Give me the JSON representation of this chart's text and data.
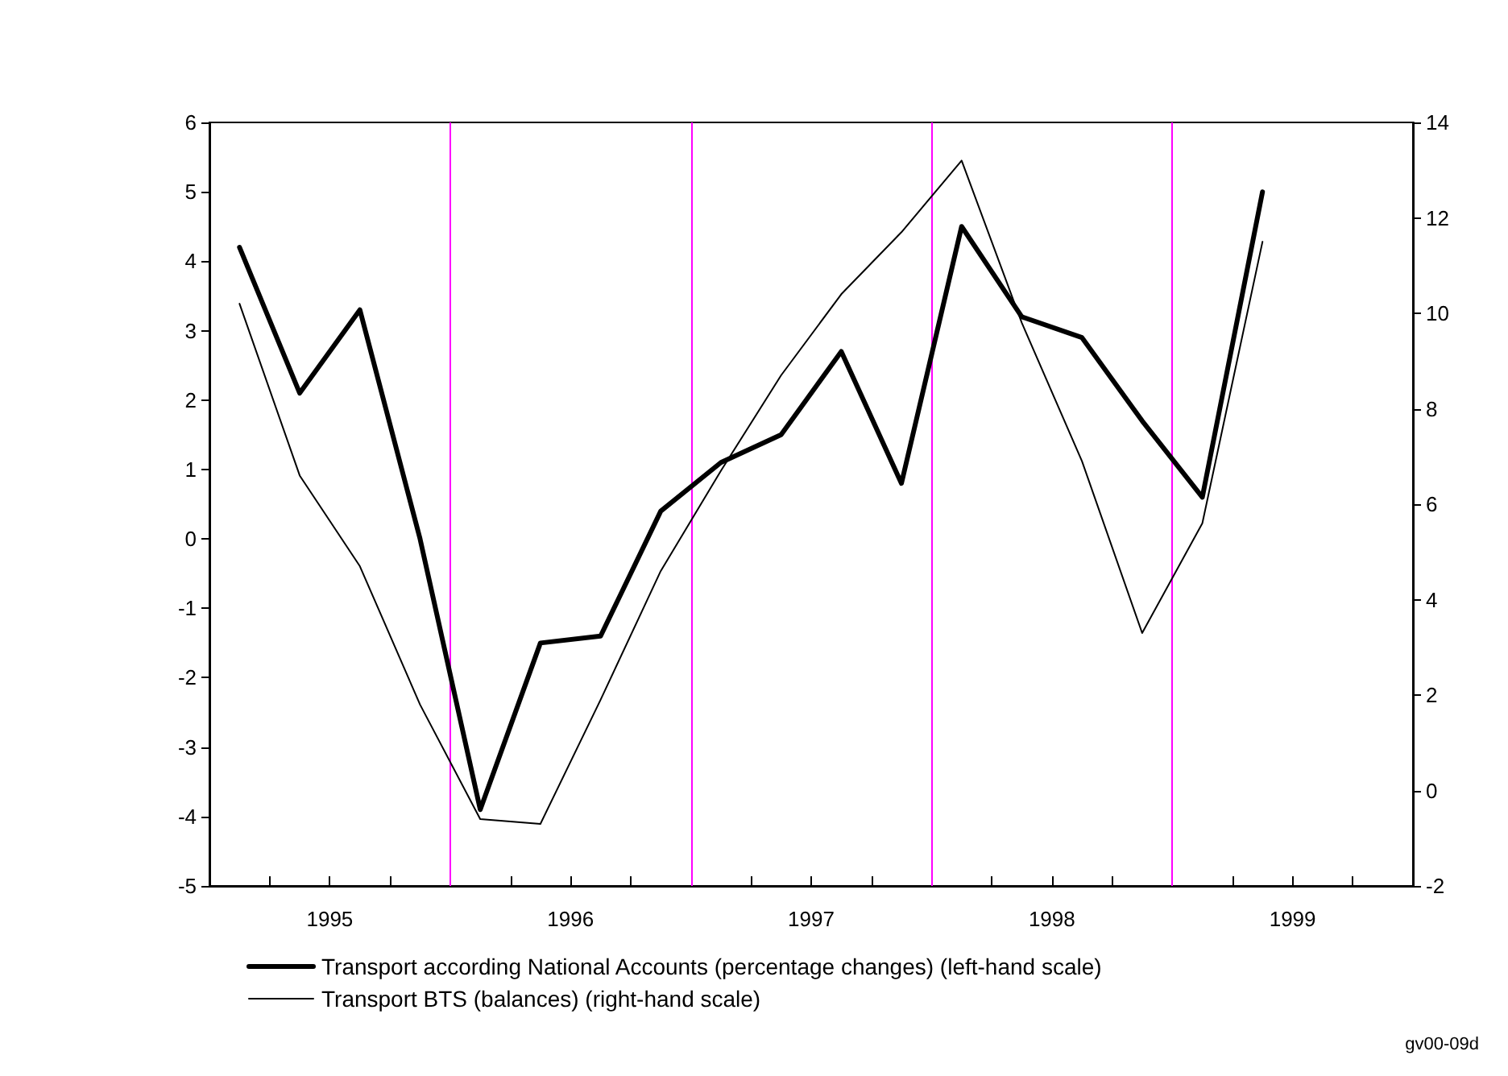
{
  "chart_data": {
    "type": "line",
    "x": [
      1995.125,
      1995.375,
      1995.625,
      1995.875,
      1996.125,
      1996.375,
      1996.625,
      1996.875,
      1997.125,
      1997.375,
      1997.625,
      1997.875,
      1998.125,
      1998.375,
      1998.625,
      1998.875,
      1999.125,
      1999.375
    ],
    "series": [
      {
        "name": "Transport according National Accounts (percentage changes) (left-hand scale)",
        "color": "#000000",
        "values": [
          4.2,
          2.1,
          3.3,
          0.0,
          -3.9,
          -1.5,
          -1.4,
          0.4,
          1.1,
          1.5,
          2.7,
          0.8,
          4.5,
          3.2,
          2.9,
          1.7,
          0.6,
          5.0
        ]
      },
      {
        "name": "Transport BTS (balances) (right-hand scale)",
        "color": "#000000",
        "axis": "y2",
        "values": [
          10.2,
          6.6,
          4.7,
          1.8,
          -0.6,
          -0.7,
          1.9,
          4.6,
          6.7,
          8.7,
          10.4,
          11.7,
          13.2,
          9.8,
          6.9,
          3.3,
          5.6,
          11.5
        ]
      }
    ],
    "xlim": [
      1995,
      2000
    ],
    "xticks": [
      {
        "value": 1995.25,
        "label": null
      },
      {
        "value": 1995.5,
        "label": "1995"
      },
      {
        "value": 1995.75,
        "label": null
      },
      {
        "value": 1996,
        "label": null
      },
      {
        "value": 1996.25,
        "label": null
      },
      {
        "value": 1996.5,
        "label": "1996"
      },
      {
        "value": 1996.75,
        "label": null
      },
      {
        "value": 1997,
        "label": null
      },
      {
        "value": 1997.25,
        "label": null
      },
      {
        "value": 1997.5,
        "label": "1997"
      },
      {
        "value": 1997.75,
        "label": null
      },
      {
        "value": 1998,
        "label": null
      },
      {
        "value": 1998.25,
        "label": null
      },
      {
        "value": 1998.5,
        "label": "1998"
      },
      {
        "value": 1998.75,
        "label": null
      },
      {
        "value": 1999,
        "label": null
      },
      {
        "value": 1999.25,
        "label": null
      },
      {
        "value": 1999.5,
        "label": "1999"
      },
      {
        "value": 1999.75,
        "label": null
      }
    ],
    "ylim": [
      -5,
      6
    ],
    "yticks": [
      -5,
      -4,
      -3,
      -2,
      -1,
      0,
      1,
      2,
      3,
      4,
      5,
      6
    ],
    "y2lim": [
      -2,
      14
    ],
    "y2ticks": [
      -2,
      0,
      2,
      4,
      6,
      8,
      10,
      12,
      14
    ],
    "ref_lines": [
      {
        "axis": "x",
        "value": 1996,
        "color": "#ff00ff"
      },
      {
        "axis": "x",
        "value": 1997,
        "color": "#ff00ff"
      },
      {
        "axis": "x",
        "value": 1998,
        "color": "#ff00ff"
      },
      {
        "axis": "x",
        "value": 1999,
        "color": "#ff00ff"
      }
    ],
    "annotations": [
      "gv00-09d"
    ],
    "legend": "bottom left",
    "grid": false,
    "marker": "none",
    "line_style": "solid"
  }
}
